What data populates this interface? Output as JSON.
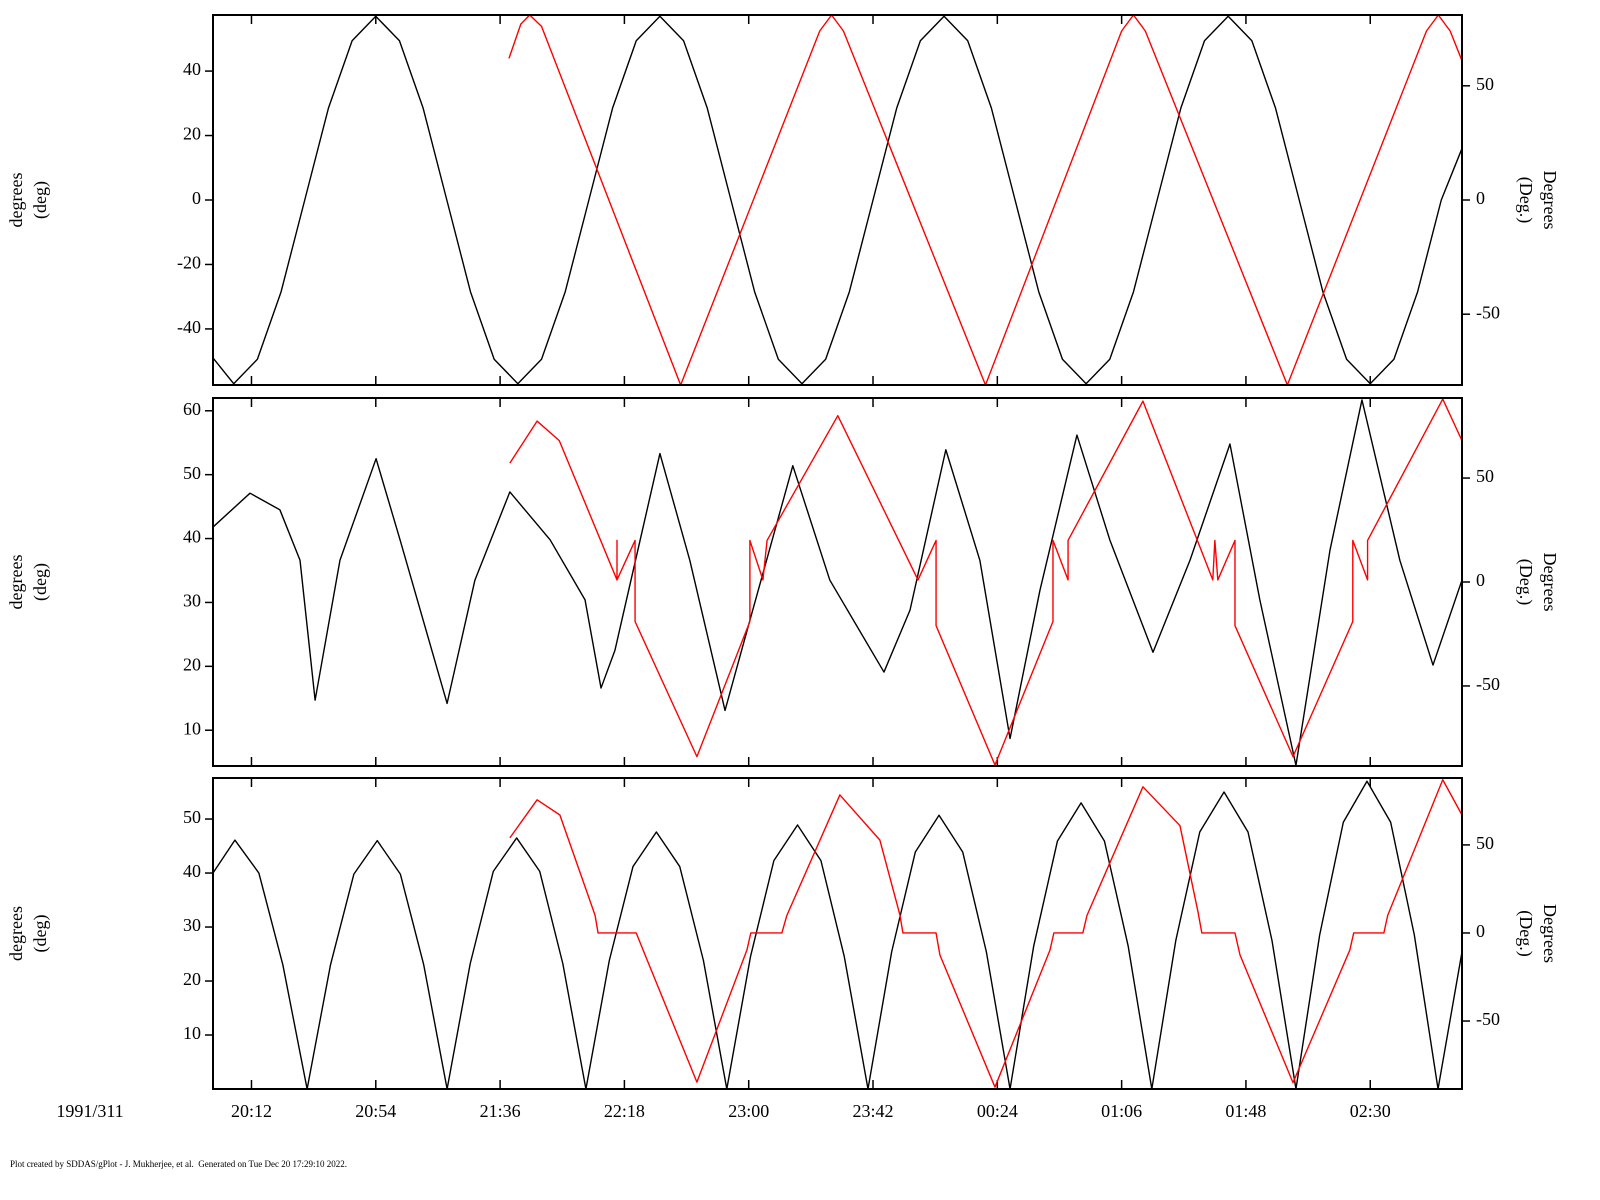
{
  "chart_data": [
    {
      "type": "line",
      "ylabel": "degrees",
      "yunit": "(deg)",
      "y2label": "Degrees",
      "y2unit": "(Deg.)",
      "xlim": [
        1199,
        1621
      ],
      "ylim": [
        -57.4,
        57.4
      ],
      "yticks": [
        -40,
        -20,
        0,
        20,
        40
      ],
      "y2lim": [
        -81,
        81
      ],
      "y2ticks": [
        -50,
        0,
        50
      ],
      "series": [
        {
          "color": "#000000",
          "x": [
            1199,
            1206,
            1214,
            1222,
            1230,
            1238,
            1246,
            1254,
            1262,
            1270,
            1278,
            1286,
            1294,
            1302,
            1310,
            1318,
            1326,
            1334,
            1342,
            1350,
            1358,
            1366,
            1374,
            1382,
            1390,
            1398,
            1406,
            1414,
            1422,
            1430,
            1438,
            1446,
            1454,
            1462,
            1470,
            1478,
            1486,
            1494,
            1502,
            1510,
            1518,
            1526,
            1534,
            1542,
            1550,
            1558,
            1566,
            1574,
            1582,
            1590,
            1598,
            1606,
            1614,
            1621
          ],
          "values": [
            -49,
            -57,
            -49.4,
            -28.5,
            0,
            28.5,
            49.4,
            57,
            49.4,
            28.5,
            0,
            -28.5,
            -49.4,
            -57,
            -49.4,
            -28.5,
            0,
            28.5,
            49.4,
            57,
            49.4,
            28.5,
            0,
            -28.5,
            -49.4,
            -57,
            -49.4,
            -28.5,
            0,
            28.5,
            49.4,
            57,
            49.4,
            28.5,
            0,
            -28.5,
            -49.4,
            -57,
            -49.4,
            -28.5,
            0,
            28.5,
            49.4,
            57,
            49.4,
            28.5,
            0,
            -28.5,
            -49.4,
            -57,
            -49.4,
            -28.5,
            0,
            16
          ]
        },
        {
          "color": "#ff0000",
          "axis": "y2",
          "x": [
            1299,
            1303,
            1306,
            1310,
            1357,
            1404,
            1408,
            1412,
            1460,
            1506,
            1510,
            1514,
            1562,
            1609,
            1613,
            1617,
            1621
          ],
          "values": [
            62,
            77,
            81,
            76,
            -81,
            74,
            81,
            74,
            -81,
            74,
            81,
            74,
            -81,
            74,
            81,
            74,
            61
          ]
        }
      ]
    },
    {
      "type": "line",
      "ylabel": "degrees",
      "yunit": "(deg)",
      "y2label": "Degrees",
      "y2unit": "(Deg.)",
      "xlim": [
        1199,
        1621
      ],
      "ylim": [
        4.4,
        62
      ],
      "yticks": [
        10,
        20,
        30,
        40,
        50,
        60
      ],
      "y2lim": [
        -88.5,
        88.5
      ],
      "y2ticks": [
        -50,
        0,
        50
      ],
      "series": [
        {
          "color": "#000000",
          "x": [
            1199,
            1211.5,
            1221.6,
            1228.4,
            1233.5,
            1241.9,
            1254.1,
            1262.2,
            1278.1,
            1287.5,
            1299.3,
            1312.9,
            1324.7,
            1330.1,
            1334.8,
            1350,
            1360.1,
            1372,
            1380.4,
            1394.9,
            1407.4,
            1425.7,
            1434.5,
            1446.6,
            1458.1,
            1468.3,
            1478.4,
            1490.9,
            1502,
            1516.6,
            1529.1,
            1542.6,
            1552.7,
            1564.9,
            1576.4,
            1587.2,
            1600,
            1611.2,
            1621
          ],
          "values": [
            41.8,
            47.1,
            44.5,
            36.6,
            14.7,
            36.6,
            52.5,
            39.8,
            14.2,
            33.5,
            47.3,
            39.8,
            30.4,
            16.6,
            22.5,
            53.3,
            36.6,
            13.1,
            27.2,
            51.4,
            33.5,
            19.1,
            28.8,
            53.9,
            36.6,
            8.7,
            31.9,
            56.2,
            39.8,
            22.2,
            36.6,
            54.8,
            30.4,
            4.5,
            38.2,
            61.7,
            36.6,
            20.2,
            33.5
          ]
        },
        {
          "color": "#ff0000",
          "axis": "y2",
          "x": [
            1299.3,
            1308.5,
            1316,
            1335.5,
            1335.5,
            1335.5,
            1341.6,
            1341.6,
            1362.5,
            1380.4,
            1380.4,
            1384.8,
            1386.2,
            1410.1,
            1437.2,
            1443.3,
            1443.3,
            1463.2,
            1482.8,
            1482.8,
            1487.9,
            1487.9,
            1513.2,
            1536.8,
            1537.5,
            1538.5,
            1544.3,
            1544.3,
            1563.9,
            1584.1,
            1584.1,
            1589.1,
            1589.1,
            1614.5,
            1621
          ],
          "values": [
            57.2,
            77.4,
            68,
            1,
            20,
            1,
            20,
            -19,
            -84,
            -19,
            20,
            1,
            20,
            80,
            1,
            20,
            -21,
            -88,
            -19,
            20,
            1,
            20,
            87,
            1,
            20,
            1,
            20,
            -21,
            -84,
            -19,
            20,
            1,
            20,
            88,
            68
          ]
        }
      ]
    },
    {
      "type": "line",
      "ylabel": "degrees",
      "yunit": "(deg)",
      "y2label": "Degrees",
      "y2unit": "(Deg.)",
      "x_date_label": "1991/311",
      "xlim": [
        1199,
        1621
      ],
      "xticks": [
        {
          "value": 1212,
          "label": "20:12"
        },
        {
          "value": 1254,
          "label": "20:54"
        },
        {
          "value": 1296,
          "label": "21:36"
        },
        {
          "value": 1338,
          "label": "22:18"
        },
        {
          "value": 1380,
          "label": "23:00"
        },
        {
          "value": 1422,
          "label": "23:42"
        },
        {
          "value": 1464,
          "label": "00:24"
        },
        {
          "value": 1506,
          "label": "01:06"
        },
        {
          "value": 1548,
          "label": "01:48"
        },
        {
          "value": 1590,
          "label": "02:30"
        }
      ],
      "ylim": [
        0,
        57.6
      ],
      "yticks": [
        10,
        20,
        30,
        40,
        50
      ],
      "y2lim": [
        -88.6,
        88
      ],
      "y2ticks": [
        -50,
        0,
        50
      ],
      "series": [
        {
          "color": "#000000",
          "x": [
            1199,
            1206.4,
            1214.5,
            1222.6,
            1230.8,
            1238.7,
            1246.6,
            1254.5,
            1262.3,
            1270.2,
            1278.1,
            1285.9,
            1293.7,
            1301.6,
            1309.4,
            1317.2,
            1325,
            1332.9,
            1340.9,
            1348.8,
            1356.7,
            1364.7,
            1372.6,
            1380.6,
            1388.5,
            1396.5,
            1404.4,
            1412.3,
            1420.3,
            1428.3,
            1436.3,
            1444.3,
            1452.3,
            1460.3,
            1468.3,
            1476.3,
            1484.3,
            1492.3,
            1500.2,
            1508.2,
            1516.2,
            1524.3,
            1532.4,
            1540.6,
            1548.7,
            1556.8,
            1564.9,
            1572.9,
            1580.9,
            1588.9,
            1596.9,
            1604.9,
            1612.9,
            1621
          ],
          "values": [
            40,
            46.1,
            40,
            23,
            0,
            23,
            39.8,
            46,
            39.8,
            23,
            0,
            23.2,
            40.3,
            46.5,
            40.3,
            23.2,
            0,
            23.8,
            41.2,
            47.6,
            41.2,
            23.8,
            0,
            24.5,
            42.3,
            48.9,
            42.3,
            24.5,
            0,
            25.4,
            43.9,
            50.7,
            43.9,
            25.4,
            0,
            26.5,
            45.9,
            53,
            45.9,
            26.5,
            0,
            27.5,
            47.6,
            55,
            47.6,
            27.5,
            0,
            28.5,
            49.4,
            57,
            49.4,
            28.5,
            0,
            25.4
          ]
        },
        {
          "color": "#ff0000",
          "axis": "y2",
          "x": [
            1299.3,
            1308.5,
            1316.2,
            1328.1,
            1329.1,
            1342,
            1345,
            1362.5,
            1379.4,
            1380.7,
            1391.2,
            1392.9,
            1410.8,
            1424.3,
            1431.1,
            1432.1,
            1443.3,
            1444.6,
            1463.2,
            1481.8,
            1483.1,
            1492.9,
            1494.3,
            1513.2,
            1525.7,
            1531.8,
            1533.1,
            1544.3,
            1546,
            1563.9,
            1583.1,
            1584.4,
            1594.6,
            1595.9,
            1614.5,
            1621
          ],
          "values": [
            54,
            75.6,
            67,
            10,
            0,
            0,
            -12.5,
            -84.7,
            -9.7,
            0,
            0,
            10,
            78.4,
            52.8,
            10.2,
            0,
            0,
            -12.5,
            -87.5,
            -9.7,
            0,
            0,
            10,
            83,
            61,
            12,
            0,
            0,
            -12.5,
            -85,
            -9.7,
            0,
            0,
            10,
            87,
            67
          ]
        }
      ]
    }
  ],
  "footer": "Plot created by SDDAS/gPlot - J. Mukherjee, et al.  Generated on Tue Dec 20 17:29:10 2022."
}
